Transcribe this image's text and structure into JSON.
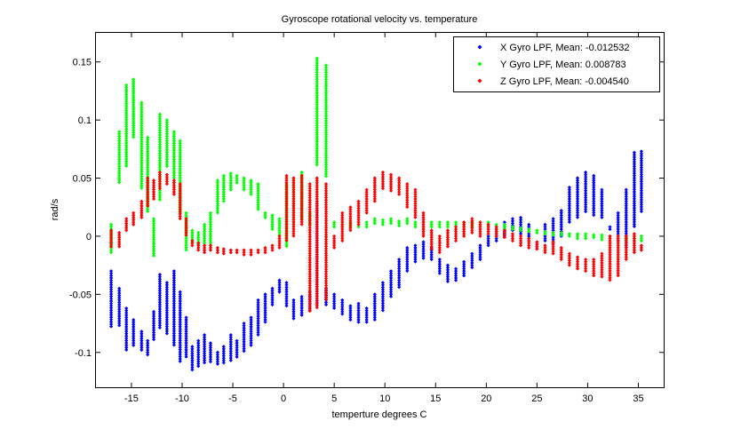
{
  "chart_data": {
    "type": "scatter",
    "title": "Gyroscope rotational velocity vs. temperature",
    "xlabel": "temperture degrees C",
    "ylabel": "rad/s",
    "xlim": [
      -18.5,
      37.5
    ],
    "ylim": [
      -0.13,
      0.175
    ],
    "xticks": [
      -15,
      -10,
      -5,
      0,
      5,
      10,
      15,
      20,
      25,
      30,
      35
    ],
    "yticks": [
      -0.1,
      -0.05,
      0,
      0.05,
      0.1,
      0.15
    ],
    "ytick_labels": [
      "-0.1",
      "-0.05",
      "0",
      "0.05",
      "0.1",
      "0.15"
    ],
    "grid": false,
    "legend_position": "top-right",
    "series": [
      {
        "name": "X Gyro LPF, Mean: -0.012532",
        "color": "#0000ff",
        "columns": [
          [
            -17,
            -0.078,
            -0.03
          ],
          [
            -16.2,
            -0.078,
            -0.045
          ],
          [
            -15.5,
            -0.098,
            -0.062
          ],
          [
            -14.8,
            -0.095,
            -0.072
          ],
          [
            -14,
            -0.098,
            -0.082
          ],
          [
            -13.4,
            -0.102,
            -0.09
          ],
          [
            -12.8,
            -0.09,
            -0.065
          ],
          [
            -12.2,
            -0.08,
            -0.033
          ],
          [
            -11.5,
            -0.085,
            -0.04
          ],
          [
            -10.8,
            -0.095,
            -0.03
          ],
          [
            -10.2,
            -0.108,
            -0.048
          ],
          [
            -9.6,
            -0.105,
            -0.07
          ],
          [
            -9,
            -0.115,
            -0.095
          ],
          [
            -8.4,
            -0.112,
            -0.09
          ],
          [
            -7.8,
            -0.11,
            -0.085
          ],
          [
            -7.2,
            -0.108,
            -0.092
          ],
          [
            -6.5,
            -0.11,
            -0.1
          ],
          [
            -5.9,
            -0.11,
            -0.095
          ],
          [
            -5.2,
            -0.108,
            -0.085
          ],
          [
            -4.6,
            -0.105,
            -0.09
          ],
          [
            -3.9,
            -0.1,
            -0.075
          ],
          [
            -3.2,
            -0.095,
            -0.07
          ],
          [
            -2.5,
            -0.085,
            -0.055
          ],
          [
            -1.8,
            -0.075,
            -0.05
          ],
          [
            -1.1,
            -0.06,
            -0.045
          ],
          [
            -0.4,
            -0.048,
            -0.038
          ],
          [
            0.3,
            -0.06,
            -0.04
          ],
          [
            1,
            -0.072,
            -0.055
          ],
          [
            1.8,
            -0.068,
            -0.052
          ],
          [
            2.6,
            -0.065,
            -0.048
          ],
          [
            3.3,
            -0.06,
            0.03
          ],
          [
            4.2,
            -0.06,
            -0.045
          ],
          [
            5,
            -0.062,
            -0.05
          ],
          [
            5.8,
            -0.068,
            -0.055
          ],
          [
            6.6,
            -0.072,
            -0.06
          ],
          [
            7.4,
            -0.075,
            -0.058
          ],
          [
            8.2,
            -0.075,
            -0.062
          ],
          [
            9,
            -0.072,
            -0.05
          ],
          [
            9.8,
            -0.065,
            -0.04
          ],
          [
            10.6,
            -0.052,
            -0.03
          ],
          [
            11.4,
            -0.045,
            -0.02
          ],
          [
            12.2,
            -0.03,
            -0.01
          ],
          [
            13,
            -0.022,
            -0.008
          ],
          [
            13.8,
            -0.02,
            -0.005
          ],
          [
            14.6,
            -0.02,
            -0.01
          ],
          [
            15.4,
            -0.032,
            -0.02
          ],
          [
            16.2,
            -0.04,
            -0.025
          ],
          [
            17,
            -0.038,
            -0.028
          ],
          [
            17.8,
            -0.035,
            -0.022
          ],
          [
            18.6,
            -0.028,
            -0.015
          ],
          [
            19.4,
            -0.02,
            -0.008
          ],
          [
            20.2,
            -0.008,
            0
          ],
          [
            21,
            -0.005,
            0.008
          ],
          [
            21.8,
            0,
            0.012
          ],
          [
            22.6,
            0.005,
            0.015
          ],
          [
            23.4,
            0.002,
            0.016
          ],
          [
            24.2,
            -0.005,
            0.01
          ],
          [
            25,
            -0.012,
            -0.005
          ],
          [
            25.8,
            -0.005,
            0.01
          ],
          [
            26.6,
            -0.008,
            0.015
          ],
          [
            27.4,
            0,
            0.022
          ],
          [
            28.2,
            0.012,
            0.042
          ],
          [
            29,
            0.015,
            0.05
          ],
          [
            29.8,
            0.02,
            0.055
          ],
          [
            30.6,
            0.018,
            0.052
          ],
          [
            31.4,
            0.015,
            0.04
          ],
          [
            32.2,
            0.005,
            0.008
          ],
          [
            33,
            -0.005,
            0.02
          ],
          [
            33.8,
            -0.01,
            0.04
          ],
          [
            34.6,
            0.008,
            0.072
          ],
          [
            35.3,
            0.02,
            0.073
          ]
        ]
      },
      {
        "name": "Y Gyro LPF, Mean: 0.008783",
        "color": "#00ff00",
        "columns": [
          [
            -17,
            -0.015,
            0.01
          ],
          [
            -16.2,
            0.045,
            0.09
          ],
          [
            -15.5,
            0.06,
            0.13
          ],
          [
            -14.8,
            0.085,
            0.135
          ],
          [
            -14,
            0.04,
            0.115
          ],
          [
            -13.4,
            0.02,
            0.085
          ],
          [
            -12.8,
            -0.018,
            0.015
          ],
          [
            -12.2,
            0.03,
            0.105
          ],
          [
            -11.5,
            0.06,
            0.1
          ],
          [
            -10.8,
            0.05,
            0.09
          ],
          [
            -10.2,
            0.02,
            0.082
          ],
          [
            -9.6,
            -0.012,
            0.02
          ],
          [
            -9,
            -0.005,
            0.005
          ],
          [
            -8.4,
            -0.008,
            0.003
          ],
          [
            -7.8,
            -0.006,
            0.01
          ],
          [
            -7.2,
            -0.008,
            0.02
          ],
          [
            -6.5,
            0.02,
            0.048
          ],
          [
            -5.9,
            0.03,
            0.052
          ],
          [
            -5.2,
            0.04,
            0.054
          ],
          [
            -4.6,
            0.045,
            0.052
          ],
          [
            -3.9,
            0.04,
            0.05
          ],
          [
            -3.2,
            0.035,
            0.048
          ],
          [
            -2.5,
            0.022,
            0.045
          ],
          [
            -1.8,
            0.015,
            0.02
          ],
          [
            -1.1,
            0.005,
            0.018
          ],
          [
            -0.4,
            0,
            0.015
          ],
          [
            0.3,
            -0.01,
            0.045
          ],
          [
            1,
            0.01,
            0.05
          ],
          [
            1.8,
            0.015,
            0.055
          ],
          [
            2.6,
            0.01,
            0.02
          ],
          [
            3.3,
            0.06,
            0.153
          ],
          [
            4.2,
            0.05,
            0.147
          ],
          [
            5,
            0.008,
            0.012
          ],
          [
            5.8,
            0.008,
            0.012
          ],
          [
            6.6,
            0.008,
            0.012
          ],
          [
            7.4,
            0.008,
            0.012
          ],
          [
            8.2,
            0.008,
            0.012
          ],
          [
            9,
            0.01,
            0.015
          ],
          [
            9.8,
            0.01,
            0.014
          ],
          [
            10.6,
            0.01,
            0.015
          ],
          [
            11.4,
            0.009,
            0.013
          ],
          [
            12.2,
            0.01,
            0.015
          ],
          [
            13,
            0.008,
            0.012
          ],
          [
            13.8,
            0.008,
            0.012
          ],
          [
            14.6,
            0.008,
            0.012
          ],
          [
            15.4,
            0.008,
            0.012
          ],
          [
            16.2,
            0.008,
            0.012
          ],
          [
            17,
            0.008,
            0.012
          ],
          [
            17.8,
            0.008,
            0.012
          ],
          [
            18.6,
            0.008,
            0.012
          ],
          [
            19.4,
            0.008,
            0.012
          ],
          [
            20.2,
            0.008,
            0.012
          ],
          [
            21,
            0.006,
            0.01
          ],
          [
            21.8,
            0.006,
            0.01
          ],
          [
            22.6,
            0.005,
            0.008
          ],
          [
            23.4,
            0.004,
            0.007
          ],
          [
            24.2,
            0.003,
            0.006
          ],
          [
            25,
            0.002,
            0.005
          ],
          [
            25.8,
            0.001,
            0.004
          ],
          [
            26.6,
            0,
            0.003
          ],
          [
            27.4,
            0,
            0.003
          ],
          [
            28.2,
            -0.001,
            0.002
          ],
          [
            29,
            -0.002,
            0.002
          ],
          [
            29.8,
            -0.002,
            0.002
          ],
          [
            30.6,
            -0.002,
            0.001
          ],
          [
            31.4,
            -0.003,
            0.001
          ],
          [
            32.2,
            -0.003,
            0
          ],
          [
            33,
            -0.003,
            0
          ],
          [
            33.8,
            -0.004,
            -0.001
          ],
          [
            34.6,
            -0.005,
            0
          ],
          [
            35.3,
            -0.004,
            0
          ]
        ]
      },
      {
        "name": "Z Gyro LPF, Mean: -0.004540",
        "color": "#ff0000",
        "columns": [
          [
            -17,
            -0.01,
            0.005
          ],
          [
            -16.2,
            -0.01,
            0.003
          ],
          [
            -15.5,
            0.005,
            0.015
          ],
          [
            -14.8,
            0.01,
            0.02
          ],
          [
            -14,
            0.015,
            0.03
          ],
          [
            -13.4,
            0.025,
            0.05
          ],
          [
            -12.8,
            0.032,
            0.048
          ],
          [
            -12.2,
            0.04,
            0.055
          ],
          [
            -11.5,
            0.045,
            0.053
          ],
          [
            -10.8,
            0.035,
            0.048
          ],
          [
            -10.2,
            0.015,
            0.045
          ],
          [
            -9.6,
            0,
            0.015
          ],
          [
            -9,
            -0.008,
            -0.004
          ],
          [
            -8.4,
            -0.012,
            -0.006
          ],
          [
            -7.8,
            -0.014,
            -0.008
          ],
          [
            -7.2,
            -0.012,
            -0.008
          ],
          [
            -6.5,
            -0.014,
            -0.01
          ],
          [
            -5.9,
            -0.015,
            -0.011
          ],
          [
            -5.2,
            -0.015,
            -0.012
          ],
          [
            -4.6,
            -0.015,
            -0.012
          ],
          [
            -3.9,
            -0.016,
            -0.012
          ],
          [
            -3.2,
            -0.016,
            -0.012
          ],
          [
            -2.5,
            -0.015,
            -0.012
          ],
          [
            -1.8,
            -0.014,
            -0.01
          ],
          [
            -1.1,
            -0.012,
            -0.008
          ],
          [
            -0.4,
            -0.01,
            0
          ],
          [
            0.3,
            -0.005,
            0.052
          ],
          [
            1,
            0,
            0.05
          ],
          [
            1.8,
            0.01,
            0.052
          ],
          [
            2.6,
            -0.065,
            0.045
          ],
          [
            3.3,
            -0.062,
            0.05
          ],
          [
            4.2,
            -0.055,
            0.045
          ],
          [
            5,
            -0.01,
            0
          ],
          [
            5.8,
            -0.005,
            0.02
          ],
          [
            6.6,
            0.005,
            0.025
          ],
          [
            7.4,
            0.01,
            0.03
          ],
          [
            8.2,
            0.02,
            0.04
          ],
          [
            9,
            0.03,
            0.05
          ],
          [
            9.8,
            0.04,
            0.055
          ],
          [
            10.6,
            0.038,
            0.053
          ],
          [
            11.4,
            0.035,
            0.05
          ],
          [
            12.2,
            0.025,
            0.045
          ],
          [
            13,
            0.015,
            0.04
          ],
          [
            13.8,
            0,
            0.02
          ],
          [
            14.6,
            -0.012,
            0.005
          ],
          [
            15.4,
            -0.015,
            0
          ],
          [
            16.2,
            -0.01,
            0.005
          ],
          [
            17,
            -0.005,
            0.008
          ],
          [
            17.8,
            0,
            0.012
          ],
          [
            18.6,
            0.002,
            0.015
          ],
          [
            19.4,
            0,
            0.012
          ],
          [
            20.2,
            0.002,
            0.01
          ],
          [
            21,
            0,
            0.008
          ],
          [
            21.8,
            -0.002,
            0.005
          ],
          [
            22.6,
            -0.005,
            0.002
          ],
          [
            23.4,
            -0.008,
            0
          ],
          [
            24.2,
            -0.01,
            -0.002
          ],
          [
            25,
            -0.012,
            -0.005
          ],
          [
            25.8,
            -0.015,
            -0.008
          ],
          [
            26.6,
            -0.015,
            -0.005
          ],
          [
            27.4,
            -0.02,
            -0.01
          ],
          [
            28.2,
            -0.025,
            -0.015
          ],
          [
            29,
            -0.028,
            -0.018
          ],
          [
            29.8,
            -0.03,
            -0.02
          ],
          [
            30.6,
            -0.035,
            -0.02
          ],
          [
            31.4,
            -0.035,
            -0.015
          ],
          [
            32.2,
            -0.038,
            0
          ],
          [
            33,
            -0.035,
            0
          ],
          [
            33.8,
            -0.02,
            0
          ],
          [
            34.6,
            -0.015,
            0.002
          ],
          [
            35.3,
            -0.012,
            -0.008
          ]
        ]
      }
    ]
  }
}
